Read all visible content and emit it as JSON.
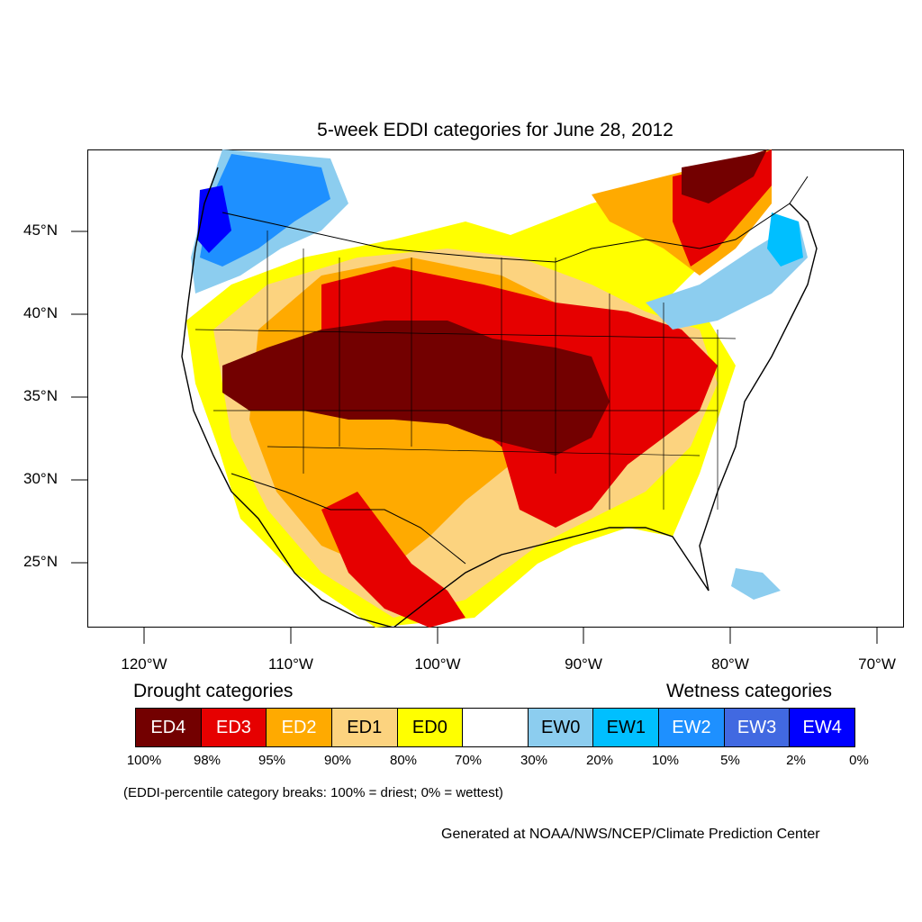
{
  "title": "5-week EDDI categories for June 28, 2012",
  "lat_labels": [
    "45°N",
    "40°N",
    "35°N",
    "30°N",
    "25°N"
  ],
  "lon_labels": [
    "120°W",
    "110°W",
    "100°W",
    "90°W",
    "80°W",
    "70°W"
  ],
  "legend": {
    "drought_title": "Drought categories",
    "wetness_title": "Wetness categories",
    "categories": [
      {
        "label": "ED4",
        "color": "#730000",
        "text_color": "#ffffff"
      },
      {
        "label": "ED3",
        "color": "#e60000",
        "text_color": "#ffffff"
      },
      {
        "label": "ED2",
        "color": "#ffaa00",
        "text_color": "#ffffff"
      },
      {
        "label": "ED1",
        "color": "#fcd37f",
        "text_color": "#000000"
      },
      {
        "label": "ED0",
        "color": "#ffff00",
        "text_color": "#000000"
      },
      {
        "label": "",
        "color": "#ffffff",
        "text_color": "#000000"
      },
      {
        "label": "EW0",
        "color": "#8ccdef",
        "text_color": "#000000"
      },
      {
        "label": "EW1",
        "color": "#00bfff",
        "text_color": "#000000"
      },
      {
        "label": "EW2",
        "color": "#1e90ff",
        "text_color": "#ffffff"
      },
      {
        "label": "EW3",
        "color": "#4169e1",
        "text_color": "#ffffff"
      },
      {
        "label": "EW4",
        "color": "#0000ff",
        "text_color": "#ffffff"
      }
    ],
    "breaks": [
      "100%",
      "98%",
      "95%",
      "90%",
      "80%",
      "70%",
      "30%",
      "20%",
      "10%",
      "5%",
      "2%",
      "0%"
    ]
  },
  "note": "(EDDI-percentile category breaks: 100% = driest; 0% = wettest)",
  "credit": "Generated at NOAA/NWS/NCEP/Climate Prediction Center",
  "map_colors": {
    "ED4": "#730000",
    "ED3": "#e60000",
    "ED2": "#ffaa00",
    "ED1": "#fcd37f",
    "ED0": "#ffff00",
    "EW0": "#8ccdef",
    "EW1": "#00bfff",
    "EW2": "#1e90ff",
    "EW3": "#4169e1",
    "EW4": "#0000ff",
    "outline": "#000000"
  }
}
